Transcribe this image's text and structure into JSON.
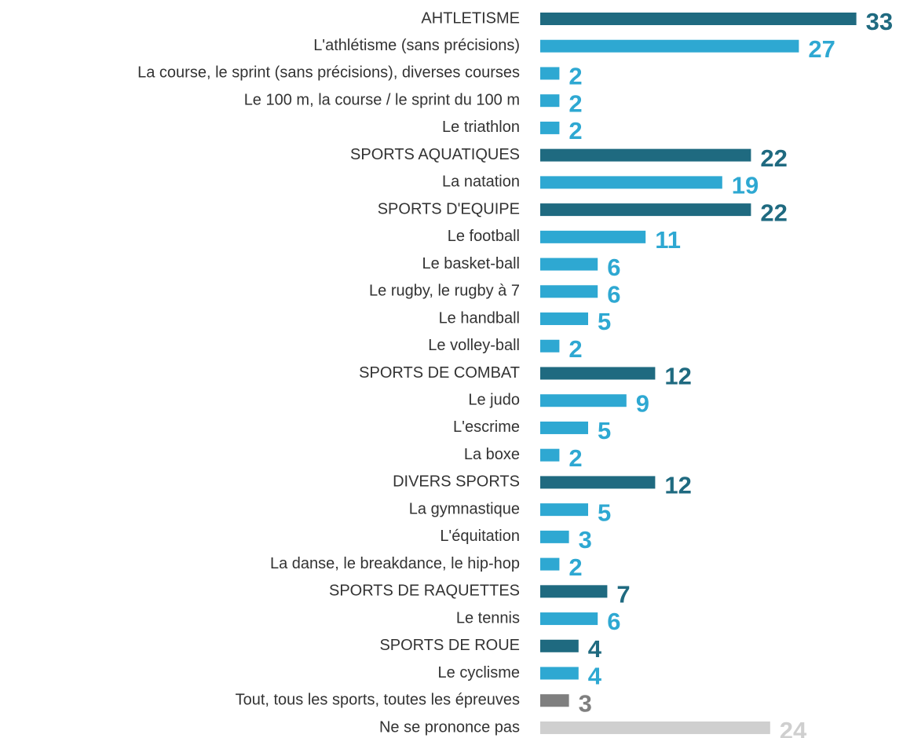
{
  "chart_data": {
    "type": "bar",
    "orientation": "horizontal",
    "categories": [
      "AHTLETISME",
      "L'athlétisme (sans précisions)",
      "La course, le sprint (sans précisions), diverses courses",
      "Le 100 m, la course / le sprint du 100 m",
      "Le triathlon",
      "SPORTS AQUATIQUES",
      "La natation",
      "SPORTS D'EQUIPE",
      "Le football",
      "Le basket-ball",
      "Le rugby, le rugby à 7",
      "Le handball",
      "Le volley-ball",
      "SPORTS DE COMBAT",
      "Le judo",
      "L'escrime",
      "La boxe",
      "DIVERS SPORTS",
      "La gymnastique",
      "L'équitation",
      "La danse, le breakdance, le hip-hop",
      "SPORTS DE RAQUETTES",
      "Le tennis",
      "SPORTS DE ROUE",
      "Le cyclisme",
      "Tout, tous les sports, toutes les épreuves",
      "Ne se prononce pas"
    ],
    "values": [
      33,
      27,
      2,
      2,
      2,
      22,
      19,
      22,
      11,
      6,
      6,
      5,
      2,
      12,
      9,
      5,
      2,
      12,
      5,
      3,
      2,
      7,
      6,
      4,
      4,
      3,
      24
    ],
    "colors": [
      "#1f6a80",
      "#2ea8d2",
      "#2ea8d2",
      "#2ea8d2",
      "#2ea8d2",
      "#1f6a80",
      "#2ea8d2",
      "#1f6a80",
      "#2ea8d2",
      "#2ea8d2",
      "#2ea8d2",
      "#2ea8d2",
      "#2ea8d2",
      "#1f6a80",
      "#2ea8d2",
      "#2ea8d2",
      "#2ea8d2",
      "#1f6a80",
      "#2ea8d2",
      "#2ea8d2",
      "#2ea8d2",
      "#1f6a80",
      "#2ea8d2",
      "#1f6a80",
      "#2ea8d2",
      "#7f7f7f",
      "#cfcfcf"
    ]
  }
}
